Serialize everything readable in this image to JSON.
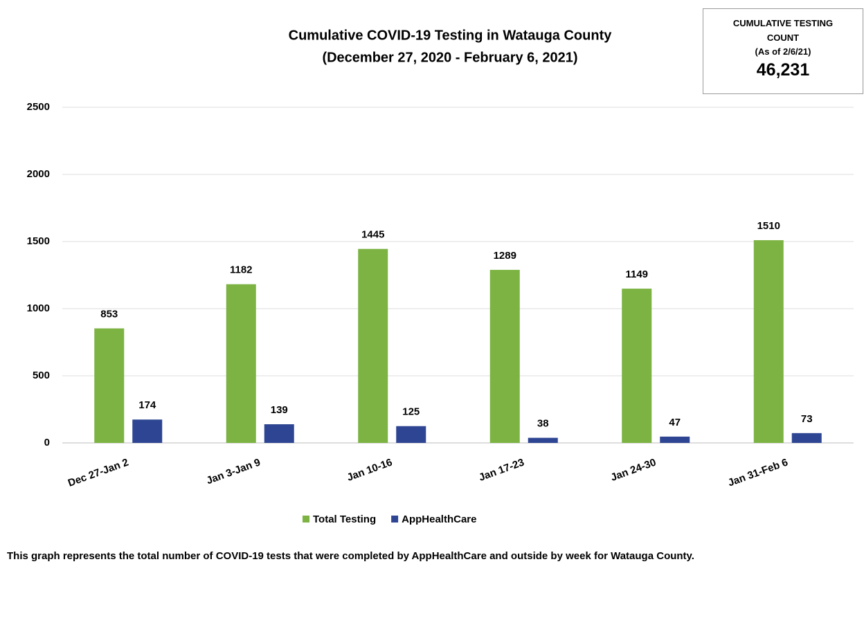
{
  "chart_data": {
    "type": "bar",
    "title": "Cumulative COVID-19 Testing in Watauga County",
    "subtitle": "(December 27, 2020 - February 6, 2021)",
    "categories": [
      "Dec 27-Jan 2",
      "Jan 3-Jan 9",
      "Jan 10-16",
      "Jan 17-23",
      "Jan 24-30",
      "Jan 31-Feb 6"
    ],
    "series": [
      {
        "name": "Total Testing",
        "color": "#7cb342",
        "values": [
          853,
          1182,
          1445,
          1289,
          1149,
          1510
        ]
      },
      {
        "name": "AppHealthCare",
        "color": "#2e4593",
        "values": [
          174,
          139,
          125,
          38,
          47,
          73
        ]
      }
    ],
    "ylim": [
      0,
      2500
    ],
    "yticks": [
      0,
      500,
      1000,
      1500,
      2000,
      2500
    ],
    "grid": true,
    "legend": "bottom",
    "box": {
      "title": "CUMULATIVE TESTING COUNT",
      "subtitle": "(As of 2/6/21)",
      "value": "46,231"
    },
    "note": "This graph represents the total number of COVID-19 tests that were completed by AppHealthCare and outside by week for Watauga County."
  }
}
